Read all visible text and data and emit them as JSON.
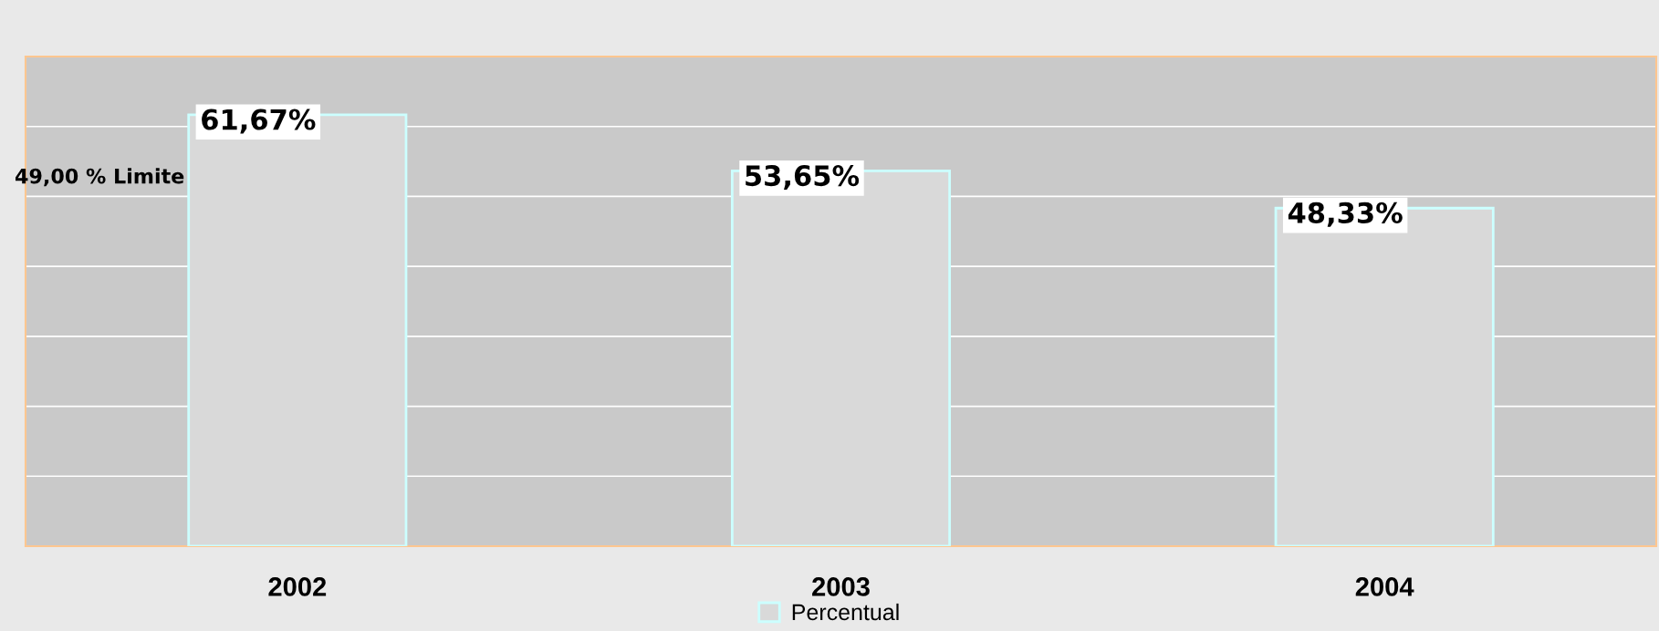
{
  "chart_data": {
    "type": "bar",
    "categories": [
      "2002",
      "2003",
      "2004"
    ],
    "series": [
      {
        "name": "Percentual",
        "color": "#d9d9d9",
        "values": [
          61.67,
          53.65,
          48.33
        ],
        "value_labels": [
          "61,67%",
          "53,65%",
          "48,33%"
        ]
      }
    ],
    "ylim": [
      0,
      70
    ],
    "yticks": [
      {
        "value": 0,
        "label": null
      },
      {
        "value": 10,
        "label": null
      },
      {
        "value": 20,
        "label": null
      },
      {
        "value": 30,
        "label": null
      },
      {
        "value": 40,
        "label": null
      },
      {
        "value": 50,
        "label": null
      },
      {
        "value": 60,
        "label": null
      },
      {
        "value": 70,
        "label": null
      }
    ],
    "grid": "y",
    "legend": "bottom",
    "tick_labels": "x",
    "annotations": [
      "49,00 % Limite"
    ]
  }
}
